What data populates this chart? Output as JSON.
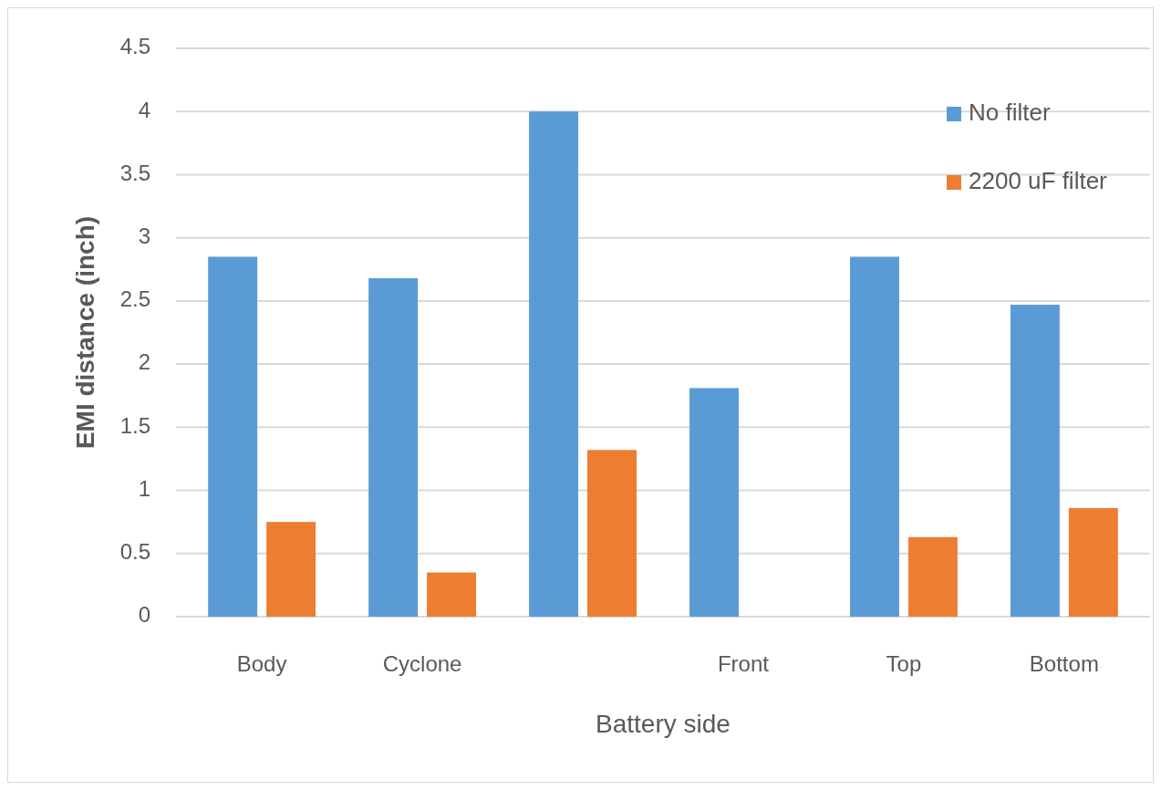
{
  "chart_data": {
    "type": "bar",
    "xlabel": "Battery side",
    "ylabel": "EMI distance (inch)",
    "categories": [
      "Body",
      "Cyclone",
      null,
      "Front",
      "Top",
      "Bottom"
    ],
    "series": [
      {
        "name": "No filter",
        "color": "#5b9bd5",
        "values": [
          2.85,
          2.68,
          4.0,
          1.81,
          2.85,
          2.47
        ]
      },
      {
        "name": "2200 uF filter",
        "color": "#ed7d31",
        "values": [
          0.75,
          0.35,
          1.32,
          0,
          0.63,
          0.86
        ]
      }
    ],
    "ylim": [
      0,
      4.5
    ],
    "yticks": [
      0,
      0.5,
      1,
      1.5,
      2,
      2.5,
      3,
      3.5,
      4,
      4.5
    ],
    "grid": "y",
    "legend": "top right"
  }
}
